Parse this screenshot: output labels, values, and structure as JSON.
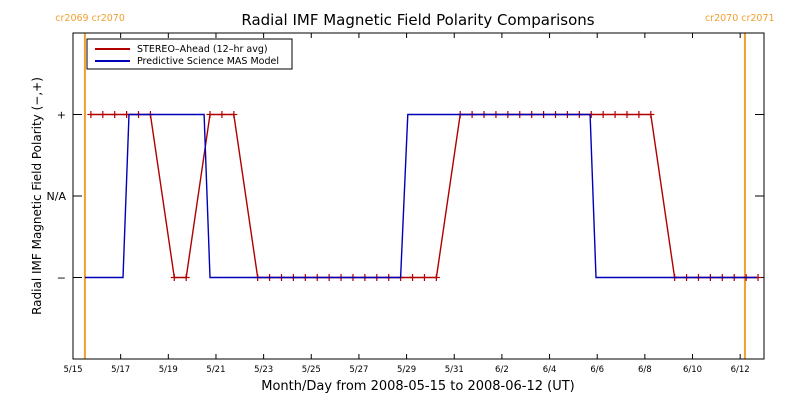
{
  "chart_data": {
    "type": "line",
    "title": "Radial IMF Magnetic Field Polarity Comparisons",
    "xlabel": "Month/Day from 2008-05-15 to 2008-06-12 (UT)",
    "ylabel": "Radial IMF Magnetic Field Polarity (−,+)",
    "x_range_days": [
      0,
      29
    ],
    "y_range": [
      -2,
      2
    ],
    "y_ticks": [
      {
        "value": 1,
        "label": "+"
      },
      {
        "value": 0,
        "label": "N/A"
      },
      {
        "value": -1,
        "label": "−"
      }
    ],
    "x_ticks": [
      {
        "day": 0,
        "label": "5/15"
      },
      {
        "day": 2,
        "label": "5/17"
      },
      {
        "day": 4,
        "label": "5/19"
      },
      {
        "day": 6,
        "label": "5/21"
      },
      {
        "day": 8,
        "label": "5/23"
      },
      {
        "day": 10,
        "label": "5/25"
      },
      {
        "day": 12,
        "label": "5/27"
      },
      {
        "day": 14,
        "label": "5/29"
      },
      {
        "day": 16,
        "label": "5/31"
      },
      {
        "day": 18,
        "label": "6/2"
      },
      {
        "day": 20,
        "label": "6/4"
      },
      {
        "day": 22,
        "label": "6/6"
      },
      {
        "day": 24,
        "label": "6/8"
      },
      {
        "day": 26,
        "label": "6/10"
      },
      {
        "day": 28,
        "label": "6/12"
      }
    ],
    "carrington_markers": [
      {
        "day": 0.5,
        "label": "cr2069 cr2070",
        "align": "right"
      },
      {
        "day": 28.2,
        "label": "cr2070 cr2071",
        "align": "left"
      }
    ],
    "legend_position": "top-left",
    "series": [
      {
        "name": "STEREO–Ahead (12–hr avg)",
        "color": "#b00000",
        "marker": "+",
        "points": [
          [
            0.75,
            1
          ],
          [
            1.25,
            1
          ],
          [
            1.75,
            1
          ],
          [
            2.25,
            1
          ],
          [
            2.75,
            1
          ],
          [
            3.25,
            1
          ],
          [
            4.25,
            -1
          ],
          [
            4.75,
            -1
          ],
          [
            5.75,
            1
          ],
          [
            6.25,
            1
          ],
          [
            6.75,
            1
          ],
          [
            7.75,
            -1
          ],
          [
            8.25,
            -1
          ],
          [
            8.75,
            -1
          ],
          [
            9.25,
            -1
          ],
          [
            9.75,
            -1
          ],
          [
            10.25,
            -1
          ],
          [
            10.75,
            -1
          ],
          [
            11.25,
            -1
          ],
          [
            11.75,
            -1
          ],
          [
            12.25,
            -1
          ],
          [
            12.75,
            -1
          ],
          [
            13.25,
            -1
          ],
          [
            13.75,
            -1
          ],
          [
            14.25,
            -1
          ],
          [
            14.75,
            -1
          ],
          [
            15.25,
            -1
          ],
          [
            16.25,
            1
          ],
          [
            16.75,
            1
          ],
          [
            17.25,
            1
          ],
          [
            17.75,
            1
          ],
          [
            18.25,
            1
          ],
          [
            18.75,
            1
          ],
          [
            19.25,
            1
          ],
          [
            19.75,
            1
          ],
          [
            20.25,
            1
          ],
          [
            20.75,
            1
          ],
          [
            21.25,
            1
          ],
          [
            21.75,
            1
          ],
          [
            22.25,
            1
          ],
          [
            22.75,
            1
          ],
          [
            23.25,
            1
          ],
          [
            23.75,
            1
          ],
          [
            24.25,
            1
          ],
          [
            25.25,
            -1
          ],
          [
            25.75,
            -1
          ],
          [
            26.25,
            -1
          ],
          [
            26.75,
            -1
          ],
          [
            27.25,
            -1
          ],
          [
            27.75,
            -1
          ],
          [
            28.25,
            -1
          ],
          [
            28.75,
            -1
          ]
        ]
      },
      {
        "name": "Predictive Science MAS Model",
        "color": "#0000b8",
        "points": [
          [
            0.5,
            -1
          ],
          [
            2.1,
            -1
          ],
          [
            2.35,
            1
          ],
          [
            5.5,
            1
          ],
          [
            5.75,
            -1
          ],
          [
            13.75,
            -1
          ],
          [
            14.05,
            1
          ],
          [
            21.7,
            1
          ],
          [
            21.95,
            -1
          ],
          [
            28.7,
            -1
          ]
        ]
      }
    ]
  }
}
